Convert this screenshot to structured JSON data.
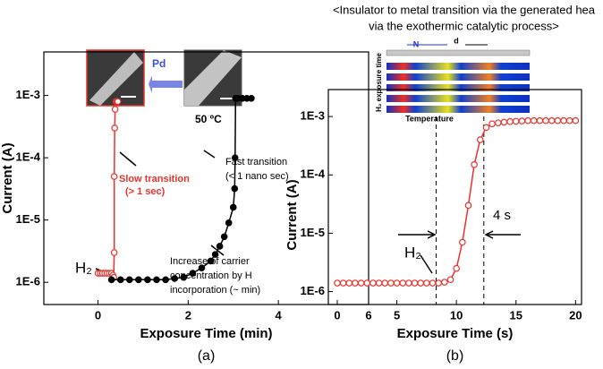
{
  "chart_data": [
    {
      "type": "line",
      "panel_label": "(a)",
      "x_label": "Exposure Time (min)",
      "y_label": "Current (A)",
      "yscale": "log",
      "xlim": [
        -1.2,
        6
      ],
      "ylim": [
        4.4e-07,
        0.005
      ],
      "xticks": [
        0,
        2,
        4,
        6
      ],
      "yticks": [
        {
          "value": 1e-06,
          "label": "1E-6"
        },
        {
          "value": 1e-05,
          "label": "1E-5"
        },
        {
          "value": 0.0001,
          "label": "1E-4"
        },
        {
          "value": 0.001,
          "label": "1E-3"
        }
      ],
      "series": [
        {
          "color": "#e8322b",
          "marker": "open",
          "x": [
            0,
            0.05,
            0.1,
            0.15,
            0.2,
            0.25,
            0.3,
            0.33,
            0.35,
            0.36,
            0.36,
            0.37,
            0.38,
            0.4,
            0.42,
            0.44
          ],
          "values": [
            1.4e-06,
            1.4e-06,
            1.4e-06,
            1.4e-06,
            1.4e-06,
            1.4e-06,
            1.4e-06,
            1.3e-06,
            1.2e-06,
            3e-06,
            5e-05,
            0.0003,
            0.0006,
            0.0008,
            0.0008,
            0.0008
          ]
        },
        {
          "color": "#000000",
          "marker": "filled",
          "x": [
            0.3,
            0.5,
            0.7,
            0.9,
            1.1,
            1.3,
            1.5,
            1.7,
            1.9,
            2.1,
            2.3,
            2.5,
            2.6,
            2.7,
            2.8,
            2.9,
            3.0,
            3.03,
            3.04,
            3.05,
            3.07,
            3.1,
            3.2,
            3.3,
            3.4
          ],
          "values": [
            1.1e-06,
            1.1e-06,
            1.1e-06,
            1.1e-06,
            1.1e-06,
            1.1e-06,
            1.1e-06,
            1.15e-06,
            1.2e-06,
            1.4e-06,
            1.7e-06,
            2.2e-06,
            2.8e-06,
            3.8e-06,
            5.4e-06,
            9e-06,
            1.6e-05,
            3.2e-05,
            0.0001,
            0.0009,
            0.0009,
            0.0009,
            0.0009,
            0.0009,
            0.0009
          ]
        }
      ],
      "annotations": [
        {
          "text": "H₂",
          "color": "#000000"
        },
        {
          "text": "Slow transition",
          "color": "#e8322b"
        },
        {
          "text": "(> 1 sec)",
          "color": "#e8322b"
        },
        {
          "text": "Fast transition",
          "color": "#000000"
        },
        {
          "text": "(< 1 nano sec)",
          "color": "#000000"
        },
        {
          "text": "50 ºC",
          "color": "#000000"
        },
        {
          "text": "Increase of carrier",
          "color": "#000000"
        },
        {
          "text": "concentration by H",
          "color": "#000000"
        },
        {
          "text": "incorporation (~ min)",
          "color": "#000000"
        },
        {
          "text": "Pd",
          "color": "#3b4fd8"
        }
      ]
    },
    {
      "type": "line",
      "panel_label": "(b)",
      "title": [
        "<Insulator to metal transition via the generated hea",
        "via the exothermic catalytic process>"
      ],
      "x_label": "Exposure Time (s)",
      "y_label": "Current (A)",
      "yscale": "log",
      "xlim": [
        -0.75,
        20.5
      ],
      "ylim": [
        6e-07,
        0.0029
      ],
      "xticks": [
        0,
        5,
        10,
        15,
        20
      ],
      "yticks": [
        {
          "value": 1e-06,
          "label": "1E-6"
        },
        {
          "value": 1e-05,
          "label": "1E-5"
        },
        {
          "value": 0.0001,
          "label": "1E-4"
        },
        {
          "value": 0.001,
          "label": "1E-3"
        }
      ],
      "vlines": [
        8.3,
        12.3
      ],
      "series": [
        {
          "color": "#e8322b",
          "marker": "open",
          "x": [
            0,
            0.5,
            1,
            1.5,
            2,
            2.5,
            3,
            3.5,
            4,
            4.5,
            5,
            5.5,
            6,
            6.5,
            7,
            7.5,
            8,
            8.5,
            9,
            9.5,
            10,
            10.5,
            11,
            11.5,
            12,
            12.5,
            13,
            13.5,
            14,
            14.5,
            15,
            15.5,
            16,
            16.5,
            17,
            17.5,
            18,
            18.5,
            19,
            19.5,
            20
          ],
          "values": [
            1.4e-06,
            1.4e-06,
            1.4e-06,
            1.4e-06,
            1.4e-06,
            1.4e-06,
            1.4e-06,
            1.4e-06,
            1.4e-06,
            1.4e-06,
            1.4e-06,
            1.4e-06,
            1.4e-06,
            1.4e-06,
            1.4e-06,
            1.4e-06,
            1.4e-06,
            1.4e-06,
            1.45e-06,
            1.6e-06,
            2.5e-06,
            7e-06,
            3e-05,
            0.00015,
            0.0004,
            0.00065,
            0.00075,
            0.00078,
            0.0008,
            0.00082,
            0.00083,
            0.00084,
            0.00085,
            0.00085,
            0.00085,
            0.00085,
            0.00085,
            0.00085,
            0.00085,
            0.00085,
            0.00085
          ]
        }
      ],
      "annotations": [
        {
          "text": "H₂",
          "color": "#000000"
        },
        {
          "text": "4 s",
          "color": "#000000"
        },
        {
          "text": "Temperature",
          "color": "#000000"
        },
        {
          "text": "H₂ exposure time",
          "color": "#000000"
        },
        {
          "text": "N",
          "color": "#2233cc"
        },
        {
          "text": "d",
          "color": "#000000"
        }
      ]
    }
  ]
}
